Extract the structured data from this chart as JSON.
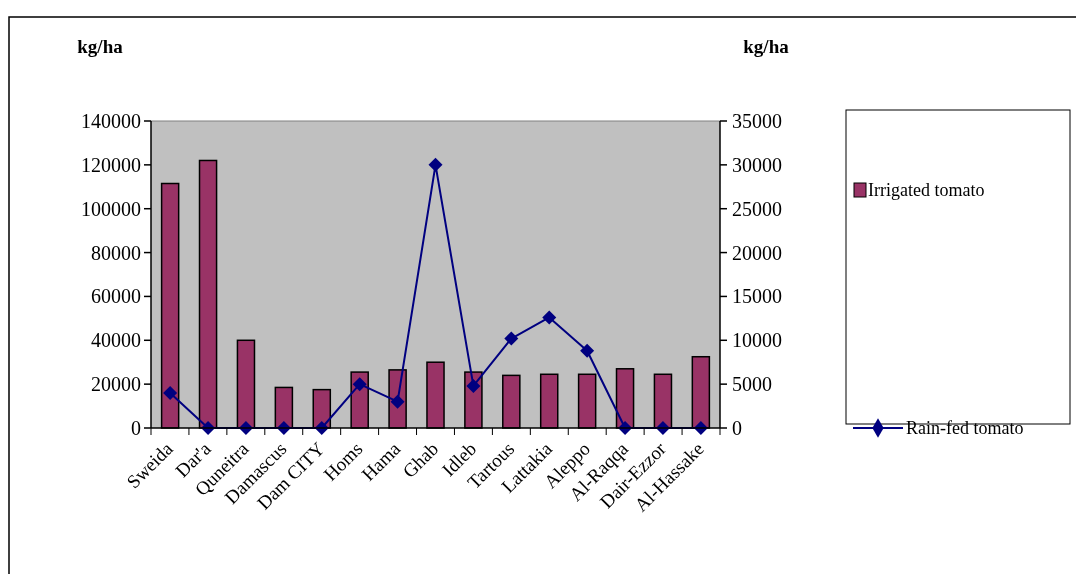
{
  "chart_data": {
    "type": "bar",
    "ylabel": "kg/ha",
    "y2label": "kg/ha",
    "categories": [
      "Sweida",
      "Dar'a",
      "Quneitra",
      "Damascus",
      "Dam CITY",
      "Homs",
      "Hama",
      "Ghab",
      "Idleb",
      "Tartous",
      "Lattakia",
      "Aleppo",
      "Al-Raqqa",
      "Dair-Ezzor",
      "Al-Hassake"
    ],
    "series": [
      {
        "name": "Irrigated tomato",
        "color": "#993366",
        "values": [
          111500,
          122000,
          40000,
          18500,
          17500,
          25500,
          26500,
          30000,
          25500,
          24000,
          24500,
          24500,
          27000,
          24500,
          32500
        ]
      },
      {
        "name": "Rain-fed tomato",
        "type": "line",
        "axis": "y2",
        "color": "#000080",
        "marker": "diamond",
        "values": [
          4000,
          0,
          0,
          0,
          0,
          5000,
          3000,
          30000,
          4800,
          10200,
          12600,
          8800,
          0,
          0,
          0
        ]
      }
    ],
    "ylim": [
      0,
      140000
    ],
    "yticks": [
      0,
      20000,
      40000,
      60000,
      80000,
      100000,
      120000,
      140000
    ],
    "y2lim": [
      0,
      35000
    ],
    "y2ticks": [
      0,
      5000,
      10000,
      15000,
      20000,
      25000,
      30000,
      35000
    ],
    "grid": false,
    "legend": "right"
  }
}
